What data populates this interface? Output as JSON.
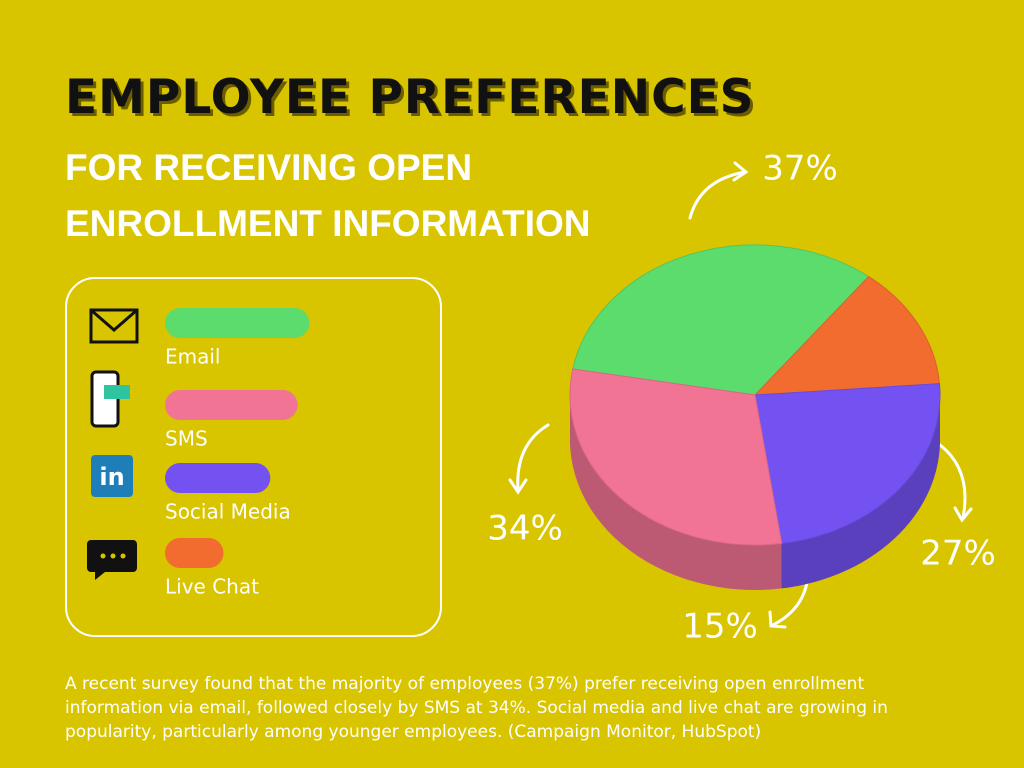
{
  "chart_data": {
    "type": "pie",
    "title": "EMPLOYEE PREFERENCES",
    "subtitle": "FOR RECEIVING OPEN ENROLLMENT INFORMATION",
    "categories": [
      "Email",
      "SMS",
      "Social Media",
      "Live Chat"
    ],
    "values": [
      37,
      34,
      27,
      15
    ],
    "value_labels": [
      "37%",
      "34%",
      "27%",
      "15%"
    ],
    "colors": [
      "#5cdc6c",
      "#f27494",
      "#7452f2",
      "#f26c30"
    ],
    "description": "A recent survey found that the majority of employees (37%) prefer receiving open enrollment information via email, followed closely by SMS at 34%. Social media and live chat are growing in popularity, particularly among younger employees. (Campaign Monitor, HubSpot)"
  }
}
